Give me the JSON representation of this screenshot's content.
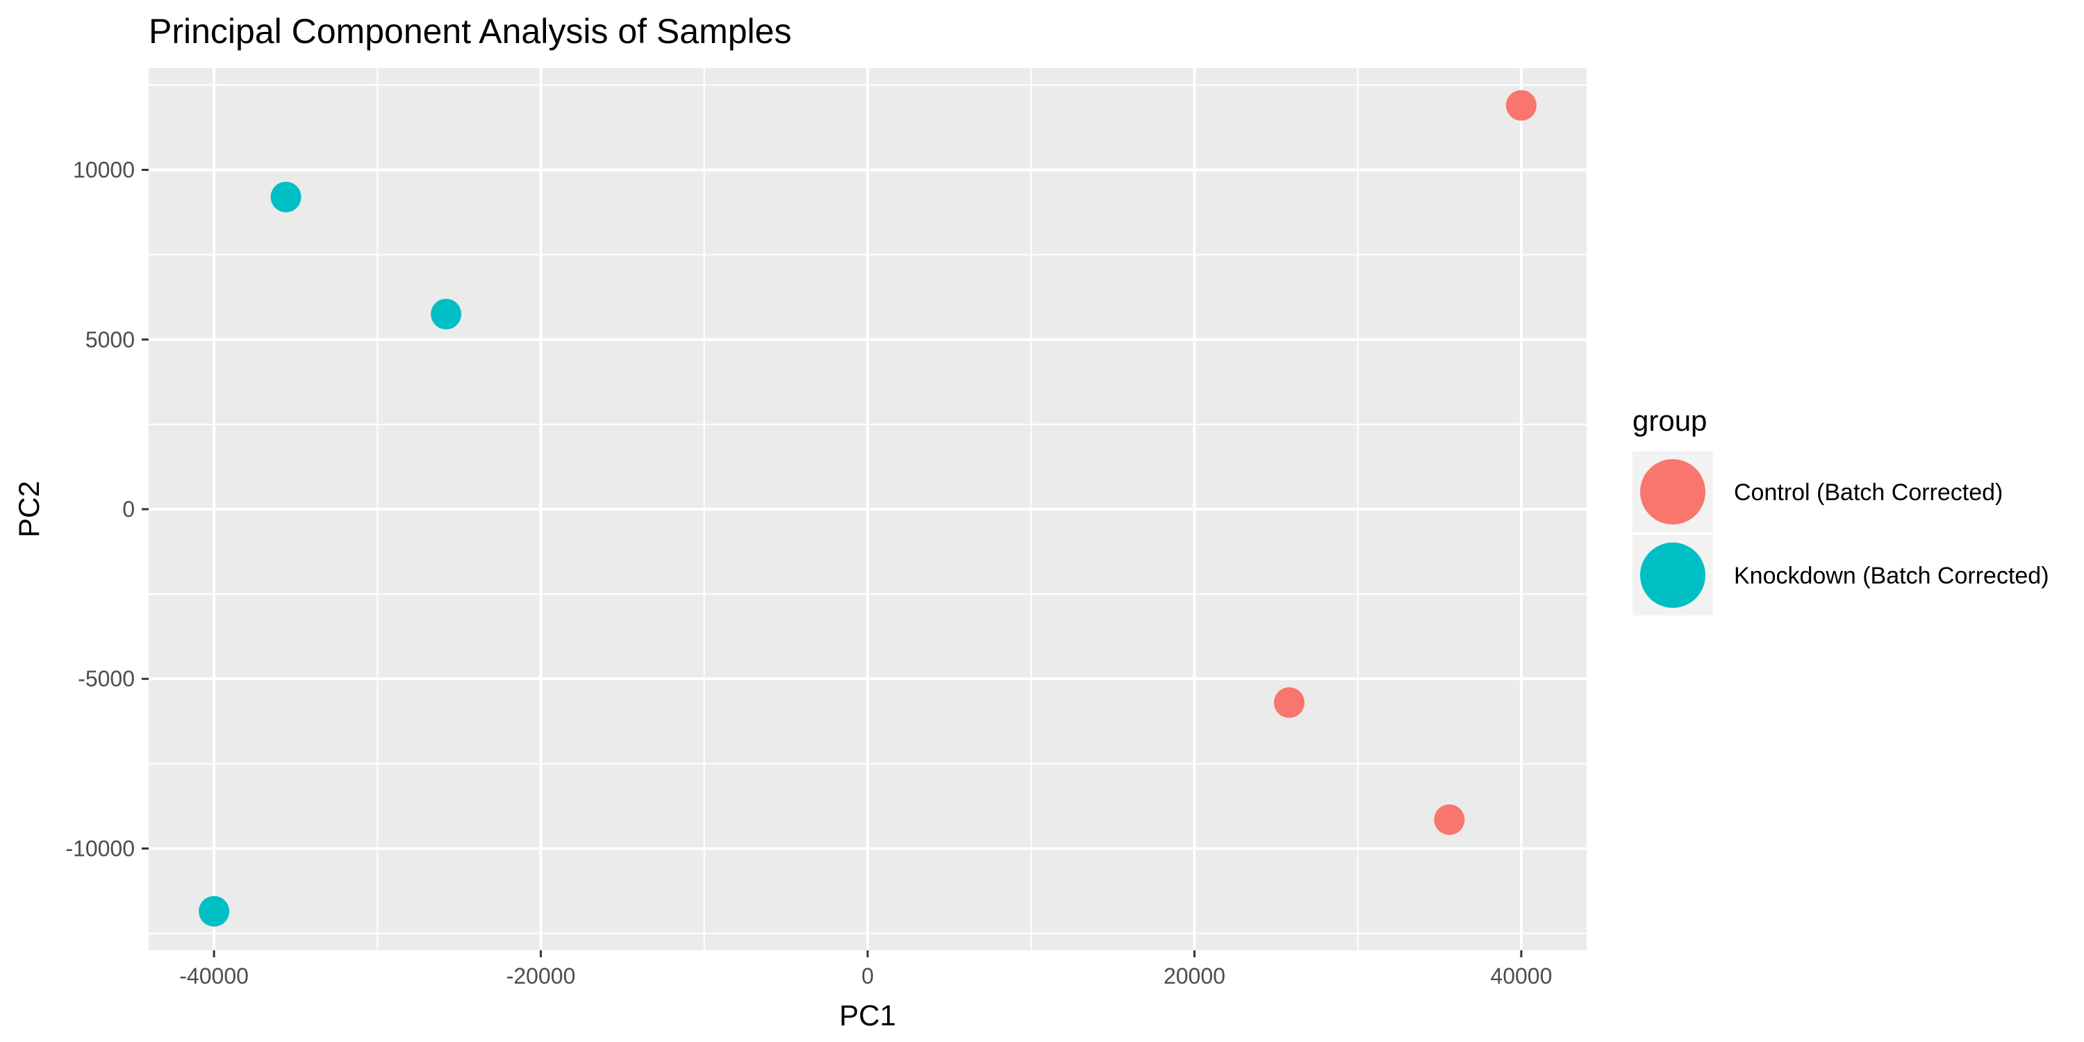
{
  "chart_data": {
    "type": "scatter",
    "title": "Principal Component Analysis of Samples",
    "xlabel": "PC1",
    "ylabel": "PC2",
    "xlim": [
      -44000,
      44000
    ],
    "ylim": [
      -13000,
      13000
    ],
    "x_ticks": [
      -40000,
      -20000,
      0,
      20000,
      40000
    ],
    "x_tick_labels": [
      "-40000",
      "-20000",
      "0",
      "20000",
      "40000"
    ],
    "y_ticks": [
      -10000,
      -5000,
      0,
      5000,
      10000
    ],
    "y_tick_labels": [
      "-10000",
      "-5000",
      "0",
      "5000",
      "10000"
    ],
    "x_minor_ticks": [
      -30000,
      -10000,
      10000,
      30000
    ],
    "y_minor_ticks": [
      -12500,
      -7500,
      -2500,
      2500,
      7500,
      12500
    ],
    "grid": true,
    "legend": {
      "title": "group",
      "position": "right"
    },
    "colors": {
      "panel_background": "#ebebeb",
      "grid_line": "#ffffff",
      "legend_key_background": "#f2f2f2"
    },
    "series": [
      {
        "name": "Control (Batch Corrected)",
        "color": "#f8766d",
        "points": [
          {
            "x": 40000,
            "y": 11900
          },
          {
            "x": 25800,
            "y": -5700
          },
          {
            "x": 35600,
            "y": -9150
          }
        ]
      },
      {
        "name": "Knockdown (Batch Corrected)",
        "color": "#00bfc4",
        "points": [
          {
            "x": -35600,
            "y": 9200
          },
          {
            "x": -25800,
            "y": 5750
          },
          {
            "x": -40000,
            "y": -11850
          }
        ]
      }
    ]
  }
}
